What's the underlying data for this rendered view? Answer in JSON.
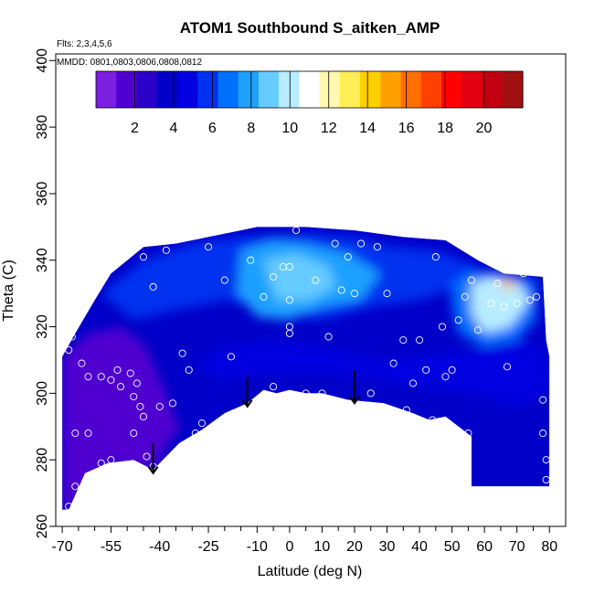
{
  "chart_data": {
    "type": "heatmap",
    "title": "ATOM1 Southbound S_aitken_AMP",
    "subtitle_lines": [
      "Flts: 2,3,4,5,6",
      "MMDD: 0801,0803,0806,0808,0812"
    ],
    "xlabel": "Latitude (deg N)",
    "ylabel": "Theta (C)",
    "xlim": [
      -72,
      85
    ],
    "ylim": [
      260,
      402
    ],
    "x_ticks": [
      -70,
      -55,
      -40,
      -25,
      -10,
      0,
      10,
      20,
      30,
      40,
      50,
      60,
      70,
      80
    ],
    "y_ticks": [
      260,
      280,
      300,
      320,
      340,
      360,
      380,
      400
    ],
    "x_minor_ticks": [
      -65,
      -60,
      -50,
      -45,
      -35,
      -30,
      -20,
      -15,
      -5,
      5,
      15,
      25,
      35,
      45,
      55,
      65,
      75
    ],
    "colorbar": {
      "min": 0,
      "max": 22,
      "ticks": [
        2,
        4,
        6,
        8,
        10,
        12,
        14,
        16,
        18,
        20
      ],
      "colors": [
        "#7b1fe0",
        "#4f00d0",
        "#2a00c8",
        "#0000c8",
        "#0000e0",
        "#0030f0",
        "#0070ff",
        "#1ea0ff",
        "#66ccff",
        "#b8ecff",
        "#ffffff",
        "#fff8b0",
        "#ffee55",
        "#ffd000",
        "#ffa000",
        "#ff7000",
        "#ff4000",
        "#ff0000",
        "#e00010",
        "#c00010",
        "#a01010"
      ]
    },
    "field_outline": [
      [
        -70,
        265
      ],
      [
        -70,
        311
      ],
      [
        -66,
        318
      ],
      [
        -60,
        328
      ],
      [
        -55,
        336
      ],
      [
        -45,
        344
      ],
      [
        -35,
        345
      ],
      [
        -25,
        347
      ],
      [
        -15,
        349
      ],
      [
        -10,
        350
      ],
      [
        5,
        350
      ],
      [
        20,
        349
      ],
      [
        35,
        347
      ],
      [
        48,
        346
      ],
      [
        58,
        340
      ],
      [
        66,
        336
      ],
      [
        78,
        335
      ],
      [
        79,
        316
      ],
      [
        80,
        311
      ],
      [
        80,
        272
      ],
      [
        56,
        272
      ],
      [
        56,
        287
      ],
      [
        48,
        293
      ],
      [
        43,
        292
      ],
      [
        38,
        294
      ],
      [
        29,
        297
      ],
      [
        18,
        298
      ],
      [
        10,
        300
      ],
      [
        5,
        300
      ],
      [
        0,
        301
      ],
      [
        -4,
        300
      ],
      [
        -8,
        301
      ],
      [
        -13,
        297
      ],
      [
        -20,
        294
      ],
      [
        -27,
        289
      ],
      [
        -34,
        285
      ],
      [
        -42,
        277
      ],
      [
        -48,
        280
      ],
      [
        -56,
        279
      ],
      [
        -63,
        276
      ],
      [
        -68,
        265
      ]
    ],
    "contour_zones": [
      {
        "level": 5.5,
        "outline": [
          [
            -58,
            330
          ],
          [
            -45,
            340
          ],
          [
            -30,
            345
          ],
          [
            -15,
            347
          ],
          [
            5,
            348
          ],
          [
            20,
            347
          ],
          [
            32,
            344
          ],
          [
            45,
            343
          ],
          [
            58,
            338
          ],
          [
            52,
            332
          ],
          [
            40,
            328
          ],
          [
            25,
            326
          ],
          [
            10,
            322
          ],
          [
            -5,
            325
          ],
          [
            -20,
            328
          ],
          [
            -35,
            325
          ],
          [
            -48,
            322
          ]
        ]
      },
      {
        "level": 7.5,
        "outline": [
          [
            -15,
            343
          ],
          [
            -5,
            346
          ],
          [
            5,
            345
          ],
          [
            18,
            342
          ],
          [
            28,
            336
          ],
          [
            22,
            328
          ],
          [
            10,
            326
          ],
          [
            0,
            322
          ],
          [
            -10,
            323
          ],
          [
            -16,
            330
          ]
        ]
      },
      {
        "level": 8.5,
        "outline": [
          [
            -8,
            340
          ],
          [
            2,
            342
          ],
          [
            12,
            338
          ],
          [
            14,
            332
          ],
          [
            6,
            328
          ],
          [
            -4,
            328
          ]
        ]
      },
      {
        "level": 6.5,
        "outline": [
          [
            50,
            333
          ],
          [
            56,
            337
          ],
          [
            66,
            336
          ],
          [
            76,
            334
          ],
          [
            76,
            322
          ],
          [
            70,
            316
          ],
          [
            60,
            314
          ],
          [
            52,
            318
          ],
          [
            50,
            326
          ]
        ]
      },
      {
        "level": 9.5,
        "outline": [
          [
            56,
            333
          ],
          [
            62,
            335
          ],
          [
            70,
            334
          ],
          [
            74,
            328
          ],
          [
            68,
            320
          ],
          [
            60,
            318
          ],
          [
            56,
            324
          ]
        ]
      },
      {
        "level": 15,
        "outline": [
          [
            64,
            333
          ],
          [
            67,
            334
          ],
          [
            70,
            333
          ],
          [
            68,
            331
          ]
        ]
      },
      {
        "level": 4.5,
        "outline": [
          [
            -30,
            308
          ],
          [
            -20,
            314
          ],
          [
            -5,
            316
          ],
          [
            10,
            314
          ],
          [
            30,
            310
          ],
          [
            50,
            312
          ],
          [
            70,
            316
          ],
          [
            79,
            312
          ],
          [
            80,
            300
          ],
          [
            70,
            296
          ],
          [
            56,
            300
          ],
          [
            40,
            302
          ],
          [
            25,
            304
          ],
          [
            10,
            306
          ],
          [
            -5,
            306
          ],
          [
            -20,
            304
          ]
        ]
      },
      {
        "level": 1.2,
        "outline": [
          [
            -70,
            265
          ],
          [
            -70,
            311
          ],
          [
            -62,
            318
          ],
          [
            -52,
            320
          ],
          [
            -44,
            314
          ],
          [
            -38,
            300
          ],
          [
            -34,
            290
          ],
          [
            -42,
            277
          ],
          [
            -56,
            279
          ],
          [
            -68,
            265
          ]
        ]
      }
    ],
    "obs_points": [
      [
        -68,
        313
      ],
      [
        -67,
        317
      ],
      [
        -64,
        309
      ],
      [
        -62,
        305
      ],
      [
        -58,
        305
      ],
      [
        -55,
        304
      ],
      [
        -53,
        307
      ],
      [
        -52,
        302
      ],
      [
        -49,
        306
      ],
      [
        -48,
        299
      ],
      [
        -47,
        303
      ],
      [
        -46,
        296
      ],
      [
        -45,
        293
      ],
      [
        -66,
        288
      ],
      [
        -62,
        288
      ],
      [
        -58,
        279
      ],
      [
        -55,
        280
      ],
      [
        -52,
        277
      ],
      [
        -48,
        288
      ],
      [
        -44,
        281
      ],
      [
        -42,
        278
      ],
      [
        -68,
        266
      ],
      [
        -66,
        272
      ],
      [
        -45,
        341
      ],
      [
        -42,
        332
      ],
      [
        -38,
        343
      ],
      [
        -33,
        312
      ],
      [
        -31,
        307
      ],
      [
        -29,
        288
      ],
      [
        -27,
        291
      ],
      [
        -25,
        344
      ],
      [
        -20,
        334
      ],
      [
        -18,
        311
      ],
      [
        -15,
        292
      ],
      [
        -12,
        340
      ],
      [
        -8,
        329
      ],
      [
        -5,
        335
      ],
      [
        -2,
        338
      ],
      [
        0,
        338
      ],
      [
        0,
        328
      ],
      [
        0,
        320
      ],
      [
        0,
        318
      ],
      [
        2,
        349
      ],
      [
        5,
        300
      ],
      [
        3,
        299
      ],
      [
        -5,
        302
      ],
      [
        8,
        334
      ],
      [
        10,
        300
      ],
      [
        12,
        317
      ],
      [
        14,
        345
      ],
      [
        16,
        331
      ],
      [
        18,
        341
      ],
      [
        20,
        330
      ],
      [
        22,
        345
      ],
      [
        25,
        300
      ],
      [
        27,
        344
      ],
      [
        30,
        330
      ],
      [
        32,
        309
      ],
      [
        36,
        295
      ],
      [
        40,
        316
      ],
      [
        42,
        307
      ],
      [
        44,
        292
      ],
      [
        45,
        341
      ],
      [
        47,
        320
      ],
      [
        48,
        305
      ],
      [
        50,
        307
      ],
      [
        52,
        322
      ],
      [
        54,
        329
      ],
      [
        56,
        334
      ],
      [
        58,
        319
      ],
      [
        62,
        327
      ],
      [
        64,
        333
      ],
      [
        66,
        326
      ],
      [
        67,
        308
      ],
      [
        70,
        327
      ],
      [
        72,
        336
      ],
      [
        74,
        328
      ],
      [
        76,
        329
      ],
      [
        78,
        298
      ],
      [
        78,
        288
      ],
      [
        79,
        280
      ],
      [
        79,
        274
      ],
      [
        -40,
        296
      ],
      [
        -36,
        297
      ],
      [
        35,
        316
      ],
      [
        38,
        303
      ],
      [
        46,
        288
      ],
      [
        55,
        288
      ]
    ],
    "arrows": [
      [
        -42,
        285
      ],
      [
        -13,
        305
      ],
      [
        20,
        307
      ]
    ],
    "arrow_tips": [
      [
        -42,
        276
      ],
      [
        -13,
        296
      ],
      [
        20,
        297
      ]
    ]
  }
}
